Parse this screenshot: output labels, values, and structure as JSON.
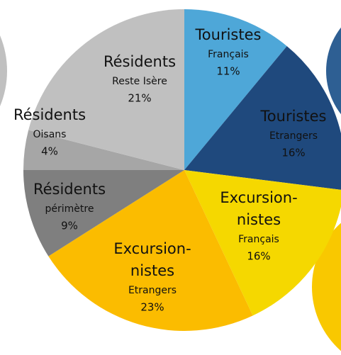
{
  "chart_data": {
    "type": "pie",
    "categories": [
      {
        "name": [
          "Touristes"
        ],
        "detail": "Français"
      },
      {
        "name": [
          "Touristes"
        ],
        "detail": "Etrangers"
      },
      {
        "name": [
          "Excursion-",
          "nistes"
        ],
        "detail": "Français"
      },
      {
        "name": [
          "Excursion-",
          "nistes"
        ],
        "detail": "Etrangers"
      },
      {
        "name": [
          "Résidents"
        ],
        "detail": "périmètre"
      },
      {
        "name": [
          "Résidents"
        ],
        "detail": "Oisans"
      },
      {
        "name": [
          "Résidents"
        ],
        "detail": "Reste Isère"
      }
    ],
    "values": [
      11,
      16,
      16,
      23,
      9,
      4,
      21
    ],
    "value_labels": [
      "11%",
      "16%",
      "16%",
      "23%",
      "9%",
      "4%",
      "21%"
    ],
    "colors": [
      "#4ea7d8",
      "#1f497d",
      "#f5d800",
      "#fbbc00",
      "#7f7f7f",
      "#a6a6a6",
      "#c0c0c0"
    ]
  }
}
